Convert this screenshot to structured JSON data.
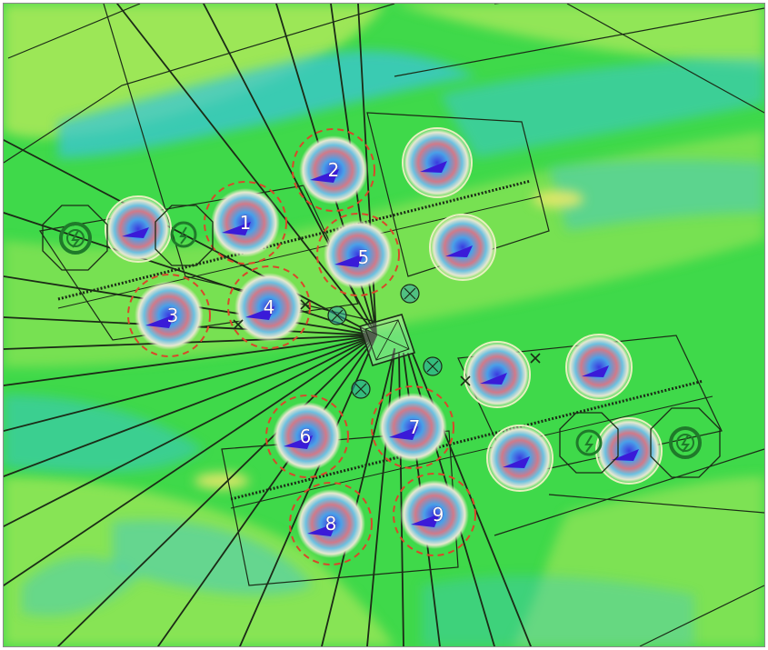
{
  "map": {
    "description_free": true,
    "colors": {
      "background": "#3fd94a",
      "band": "#9be85c",
      "cyan": "#39c6d6",
      "yellow": "#cfe85a",
      "mooring_line": "#1b2b16",
      "highlight_ring": "#d8482a",
      "pile_icon": "#1f7a2a"
    },
    "anchor_labels": [
      "1",
      "2",
      "3",
      "4",
      "5",
      "6",
      "7",
      "8",
      "9"
    ],
    "icons": {
      "anchor_marker": "anchor-scour-icon",
      "pile": "lightning-pile-icon",
      "buoy": "buoy-cross-icon",
      "centre_structure": "platform-icon"
    }
  }
}
